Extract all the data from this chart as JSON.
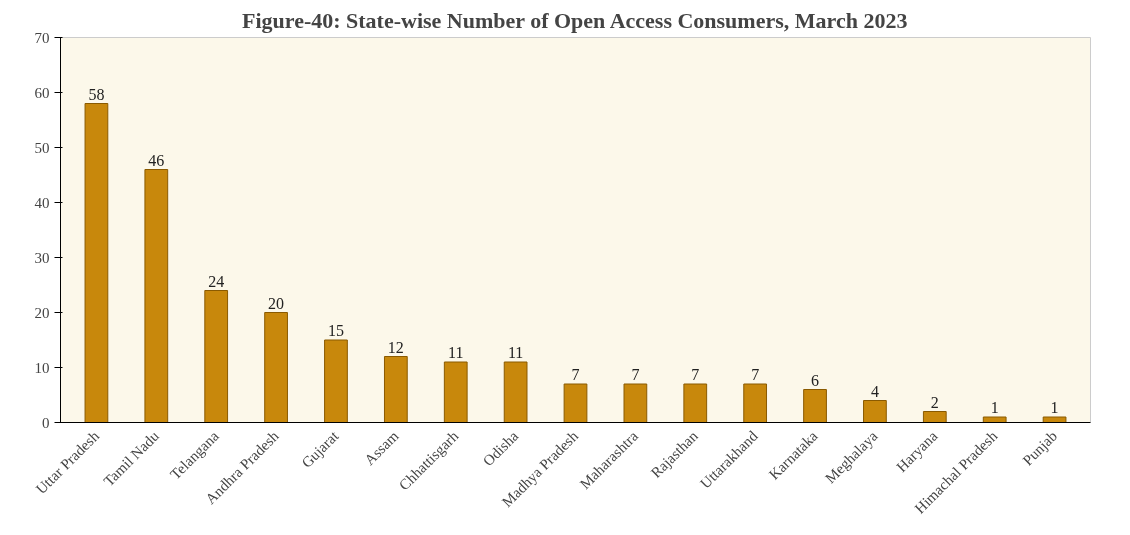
{
  "chart_data": {
    "type": "bar",
    "title": "Figure-40: State-wise Number of Open Access Consumers, March 2023",
    "categories": [
      "Uttar Pradesh",
      "Tamil Nadu",
      "Telangana",
      "Andhra Pradesh",
      "Gujarat",
      "Assam",
      "Chhattisgarh",
      "Odisha",
      "Madhya Pradesh",
      "Maharashtra",
      "Rajasthan",
      "Uttarakhand",
      "Karnataka",
      "Meghalaya",
      "Haryana",
      "Himachal Pradesh",
      "Punjab"
    ],
    "values": [
      58,
      46,
      24,
      20,
      15,
      12,
      11,
      11,
      7,
      7,
      7,
      7,
      6,
      4,
      2,
      1,
      1
    ],
    "color": "#c8880c",
    "ylim": [
      0,
      70
    ],
    "yticks": [
      0,
      10,
      20,
      30,
      40,
      50,
      60,
      70
    ],
    "grid": false,
    "data_labels": true
  }
}
